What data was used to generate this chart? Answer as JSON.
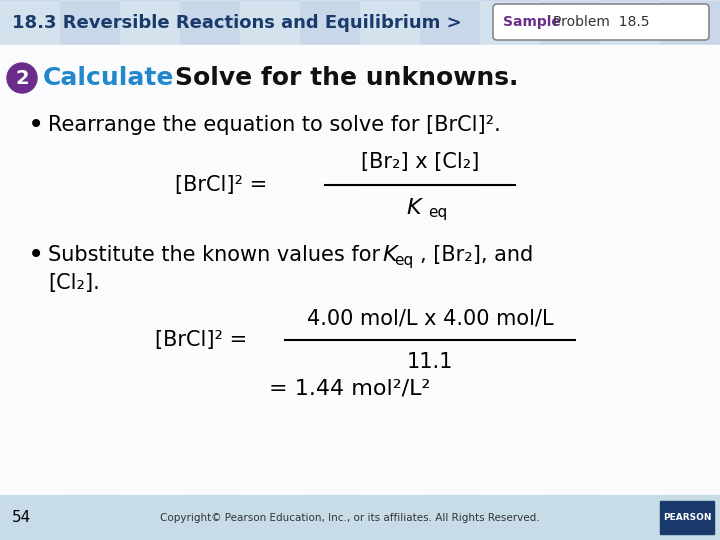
{
  "header_text": "18.3 Reversible Reactions and Equilibrium >",
  "header_color": "#1A3A6B",
  "sample_label": "Sample",
  "sample_color": "#6B2D8B",
  "problem_text": "Problem  18.5",
  "problem_color": "#333333",
  "badge_border_color": "#888888",
  "step_number": "2",
  "step_bg_color": "#6B2D8B",
  "step_label": "Calculate",
  "step_label_color": "#2288CC",
  "step_desc": "Solve for the unknowns.",
  "step_desc_color": "#111111",
  "bullet1": "Rearrange the equation to solve for [BrCl]².",
  "eq1_left": "[BrCl]² =",
  "eq1_num": "[Br₂] x [Cl₂]",
  "eq1_den": "K",
  "eq1_den_sub": "eq",
  "bullet2_line1_a": "Substitute the known values for ",
  "bullet2_K": "K",
  "bullet2_eq": "eq",
  "bullet2_line1_b": ", [Br₂], and",
  "bullet2_line2": "[Cl₂].",
  "eq2_left": "[BrCl]² =",
  "eq2_num": "4.00 mol/L x 4.00 mol/L",
  "eq2_den": "11.1",
  "eq3": "= 1.44 mol²/L²",
  "footer_page": "54",
  "footer_copy": "Copyright© Pearson Education, Inc., or its affiliates. All Rights Reserved.",
  "bg_color": "#FFFFFF",
  "tile_color_a": "#C8D8E8",
  "tile_color_b": "#D4E2EE",
  "footer_bg_color": "#C8DCE8",
  "pearson_bg": "#1A3A6B"
}
